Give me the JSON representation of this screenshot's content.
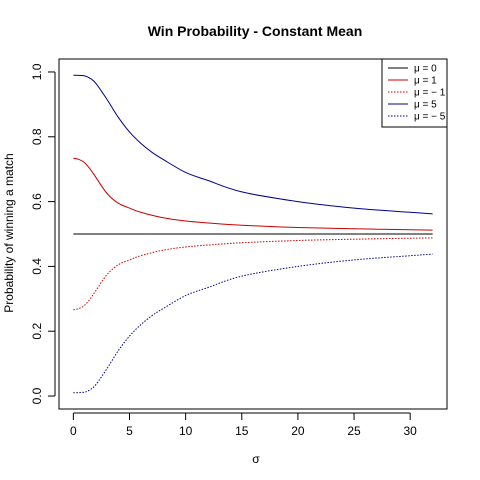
{
  "chart_data": {
    "type": "line",
    "title": "Win Probability - Constant Mean",
    "xlabel": "σ",
    "ylabel": "Probability of winning a match",
    "xlim": [
      0,
      32
    ],
    "ylim": [
      0,
      1
    ],
    "xticks": [
      0,
      5,
      10,
      15,
      20,
      25,
      30
    ],
    "yticks": [
      0.0,
      0.2,
      0.4,
      0.6,
      0.8,
      1.0
    ],
    "ytick_labels": [
      "0.0",
      "0.2",
      "0.4",
      "0.6",
      "0.8",
      "1.0"
    ],
    "grid": false,
    "legend_position": "top-right",
    "series": [
      {
        "name": "μ = 0",
        "color": "#000000",
        "dash": "solid",
        "x": [
          0,
          32
        ],
        "y": [
          0.5,
          0.5
        ]
      },
      {
        "name": "μ = 1",
        "color": "#cc0000",
        "dash": "solid",
        "x": [
          0,
          0.5,
          1,
          1.5,
          2,
          3,
          4,
          5,
          6,
          8,
          10,
          12,
          15,
          20,
          25,
          30,
          32
        ],
        "y": [
          0.734,
          0.73,
          0.72,
          0.7,
          0.675,
          0.625,
          0.595,
          0.58,
          0.567,
          0.55,
          0.54,
          0.534,
          0.527,
          0.52,
          0.516,
          0.513,
          0.512
        ]
      },
      {
        "name": "μ = − 1",
        "color": "#cc0000",
        "dash": "dotted",
        "x": [
          0,
          0.5,
          1,
          1.5,
          2,
          3,
          4,
          5,
          6,
          8,
          10,
          12,
          15,
          20,
          25,
          30,
          32
        ],
        "y": [
          0.266,
          0.27,
          0.28,
          0.3,
          0.325,
          0.375,
          0.405,
          0.42,
          0.433,
          0.45,
          0.46,
          0.466,
          0.473,
          0.48,
          0.484,
          0.487,
          0.488
        ]
      },
      {
        "name": "μ = 5",
        "color": "#00008b",
        "dash": "solid",
        "x": [
          0,
          1,
          1.5,
          2,
          3,
          4,
          5,
          6,
          7,
          8,
          10,
          12,
          15,
          20,
          25,
          30,
          32
        ],
        "y": [
          0.99,
          0.988,
          0.98,
          0.965,
          0.915,
          0.86,
          0.815,
          0.78,
          0.752,
          0.73,
          0.69,
          0.665,
          0.63,
          0.6,
          0.58,
          0.567,
          0.562
        ]
      },
      {
        "name": "μ = − 5",
        "color": "#00008b",
        "dash": "dotted",
        "x": [
          0,
          1,
          1.5,
          2,
          3,
          4,
          5,
          6,
          7,
          8,
          10,
          12,
          15,
          20,
          25,
          30,
          32
        ],
        "y": [
          0.01,
          0.012,
          0.02,
          0.035,
          0.085,
          0.14,
          0.185,
          0.22,
          0.248,
          0.27,
          0.31,
          0.335,
          0.37,
          0.4,
          0.42,
          0.433,
          0.438
        ]
      }
    ]
  }
}
